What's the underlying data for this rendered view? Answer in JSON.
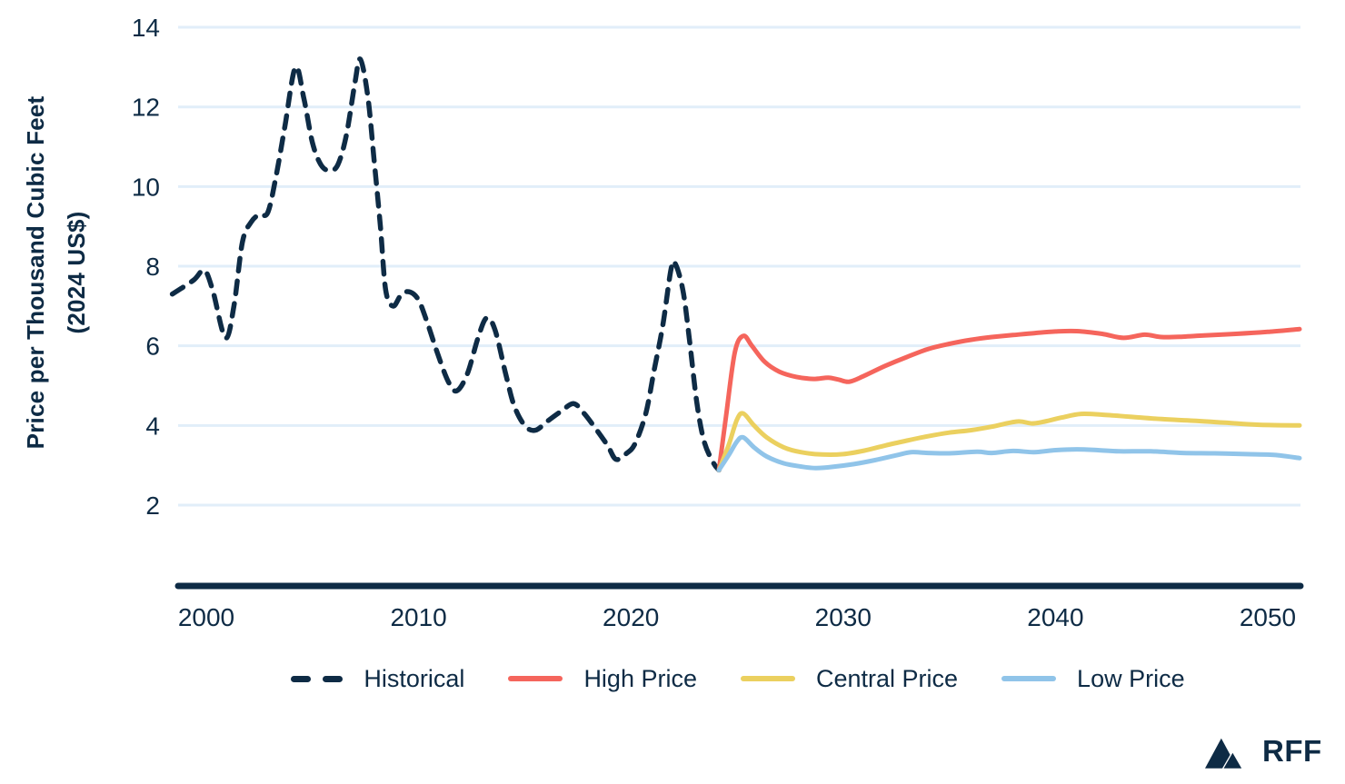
{
  "colors": {
    "navy": "#0E2B45",
    "red": "#F5655C",
    "yellow": "#EBD05F",
    "blue": "#90C4E9",
    "gridline": "#E1EEF9",
    "background": "#FFFFFF"
  },
  "branding": {
    "logo_text": "RFF",
    "logo_icon": "mountain-icon"
  },
  "chart_data": {
    "type": "line",
    "title": "",
    "xlabel": "",
    "ylabel": "Price per Thousand Cubic Feet (2024 US$)",
    "ylabel_lines": [
      "Price per Thousand Cubic Feet",
      "(2024 US$)"
    ],
    "x_ticks": [
      2000,
      2010,
      2020,
      2030,
      2040,
      2050
    ],
    "y_ticks": [
      14,
      12,
      10,
      8,
      6,
      4,
      2
    ],
    "xlim": [
      1998.4,
      2051.6
    ],
    "ylim": [
      0,
      14.3
    ],
    "grid": "horizontal",
    "legend_position": "bottom",
    "series": [
      {
        "name": "Historical",
        "style": "dashed",
        "color": "#0E2B45",
        "points": [
          [
            1998.4,
            7.3
          ],
          [
            1999.4,
            7.65
          ],
          [
            1999.9,
            7.9
          ],
          [
            2000.3,
            7.4
          ],
          [
            2000.9,
            6.2
          ],
          [
            2001.3,
            7.0
          ],
          [
            2001.7,
            8.6
          ],
          [
            2002.1,
            9.1
          ],
          [
            2002.5,
            9.3
          ],
          [
            2002.9,
            9.35
          ],
          [
            2003.3,
            10.3
          ],
          [
            2003.7,
            11.5
          ],
          [
            2004.2,
            13.0
          ],
          [
            2004.6,
            12.2
          ],
          [
            2005.0,
            11.1
          ],
          [
            2005.4,
            10.55
          ],
          [
            2005.8,
            10.4
          ],
          [
            2006.2,
            10.55
          ],
          [
            2006.6,
            11.3
          ],
          [
            2007.0,
            12.6
          ],
          [
            2007.25,
            13.2
          ],
          [
            2007.6,
            12.3
          ],
          [
            2007.9,
            10.7
          ],
          [
            2008.2,
            9.0
          ],
          [
            2008.45,
            7.4
          ],
          [
            2008.8,
            7.0
          ],
          [
            2009.2,
            7.3
          ],
          [
            2009.6,
            7.35
          ],
          [
            2010.0,
            7.15
          ],
          [
            2010.4,
            6.6
          ],
          [
            2010.9,
            5.8
          ],
          [
            2011.4,
            5.1
          ],
          [
            2011.8,
            4.87
          ],
          [
            2012.3,
            5.3
          ],
          [
            2012.8,
            6.2
          ],
          [
            2013.2,
            6.7
          ],
          [
            2013.6,
            6.4
          ],
          [
            2014.1,
            5.3
          ],
          [
            2014.5,
            4.5
          ],
          [
            2015.0,
            4.0
          ],
          [
            2015.5,
            3.88
          ],
          [
            2016.1,
            4.12
          ],
          [
            2016.7,
            4.35
          ],
          [
            2017.3,
            4.55
          ],
          [
            2017.8,
            4.3
          ],
          [
            2018.3,
            3.95
          ],
          [
            2018.9,
            3.5
          ],
          [
            2019.3,
            3.15
          ],
          [
            2019.8,
            3.3
          ],
          [
            2020.2,
            3.55
          ],
          [
            2020.7,
            4.3
          ],
          [
            2021.1,
            5.4
          ],
          [
            2021.5,
            6.5
          ],
          [
            2021.9,
            7.95
          ],
          [
            2022.1,
            8.05
          ],
          [
            2022.45,
            7.4
          ],
          [
            2022.75,
            6.2
          ],
          [
            2023.1,
            4.6
          ],
          [
            2023.45,
            3.6
          ],
          [
            2023.9,
            3.05
          ],
          [
            2024.15,
            2.88
          ]
        ]
      },
      {
        "name": "High Price",
        "style": "solid",
        "color": "#F5655C",
        "points": [
          [
            2024.15,
            2.88
          ],
          [
            2024.5,
            4.3
          ],
          [
            2024.9,
            5.85
          ],
          [
            2025.3,
            6.25
          ],
          [
            2025.7,
            6.0
          ],
          [
            2026.3,
            5.6
          ],
          [
            2027.0,
            5.35
          ],
          [
            2027.8,
            5.22
          ],
          [
            2028.6,
            5.17
          ],
          [
            2029.3,
            5.2
          ],
          [
            2029.8,
            5.15
          ],
          [
            2030.3,
            5.1
          ],
          [
            2031.0,
            5.25
          ],
          [
            2032.0,
            5.5
          ],
          [
            2033.0,
            5.72
          ],
          [
            2034.0,
            5.92
          ],
          [
            2035.0,
            6.05
          ],
          [
            2036.0,
            6.15
          ],
          [
            2037.0,
            6.22
          ],
          [
            2038.0,
            6.27
          ],
          [
            2039.0,
            6.32
          ],
          [
            2040.0,
            6.36
          ],
          [
            2041.0,
            6.37
          ],
          [
            2042.2,
            6.3
          ],
          [
            2043.2,
            6.2
          ],
          [
            2044.2,
            6.28
          ],
          [
            2045.0,
            6.22
          ],
          [
            2046.0,
            6.23
          ],
          [
            2047.0,
            6.26
          ],
          [
            2048.5,
            6.3
          ],
          [
            2050.0,
            6.35
          ],
          [
            2051.5,
            6.42
          ]
        ]
      },
      {
        "name": "Central Price",
        "style": "solid",
        "color": "#EBD05F",
        "points": [
          [
            2024.15,
            2.88
          ],
          [
            2024.6,
            3.5
          ],
          [
            2025.0,
            4.15
          ],
          [
            2025.3,
            4.3
          ],
          [
            2025.8,
            4.0
          ],
          [
            2026.4,
            3.7
          ],
          [
            2027.2,
            3.45
          ],
          [
            2028.0,
            3.33
          ],
          [
            2029.0,
            3.27
          ],
          [
            2030.0,
            3.28
          ],
          [
            2031.0,
            3.37
          ],
          [
            2032.0,
            3.5
          ],
          [
            2033.0,
            3.62
          ],
          [
            2034.0,
            3.73
          ],
          [
            2035.0,
            3.82
          ],
          [
            2036.0,
            3.88
          ],
          [
            2037.0,
            3.97
          ],
          [
            2038.2,
            4.1
          ],
          [
            2038.9,
            4.05
          ],
          [
            2039.5,
            4.1
          ],
          [
            2040.3,
            4.2
          ],
          [
            2041.2,
            4.29
          ],
          [
            2042.2,
            4.27
          ],
          [
            2043.5,
            4.22
          ],
          [
            2045.0,
            4.16
          ],
          [
            2046.5,
            4.12
          ],
          [
            2048.0,
            4.07
          ],
          [
            2049.5,
            4.02
          ],
          [
            2051.5,
            4.0
          ]
        ]
      },
      {
        "name": "Low Price",
        "style": "solid",
        "color": "#90C4E9",
        "points": [
          [
            2024.15,
            2.88
          ],
          [
            2024.6,
            3.25
          ],
          [
            2025.0,
            3.6
          ],
          [
            2025.3,
            3.7
          ],
          [
            2025.8,
            3.45
          ],
          [
            2026.4,
            3.22
          ],
          [
            2027.2,
            3.05
          ],
          [
            2028.0,
            2.97
          ],
          [
            2028.7,
            2.93
          ],
          [
            2029.5,
            2.96
          ],
          [
            2030.5,
            3.03
          ],
          [
            2031.5,
            3.13
          ],
          [
            2032.5,
            3.25
          ],
          [
            2033.2,
            3.33
          ],
          [
            2034.0,
            3.31
          ],
          [
            2035.0,
            3.3
          ],
          [
            2036.3,
            3.34
          ],
          [
            2037.0,
            3.31
          ],
          [
            2038.0,
            3.36
          ],
          [
            2039.0,
            3.33
          ],
          [
            2040.0,
            3.38
          ],
          [
            2041.0,
            3.4
          ],
          [
            2042.0,
            3.38
          ],
          [
            2043.0,
            3.35
          ],
          [
            2044.5,
            3.35
          ],
          [
            2046.0,
            3.31
          ],
          [
            2047.5,
            3.3
          ],
          [
            2049.0,
            3.28
          ],
          [
            2050.3,
            3.26
          ],
          [
            2051.5,
            3.18
          ]
        ]
      }
    ]
  }
}
